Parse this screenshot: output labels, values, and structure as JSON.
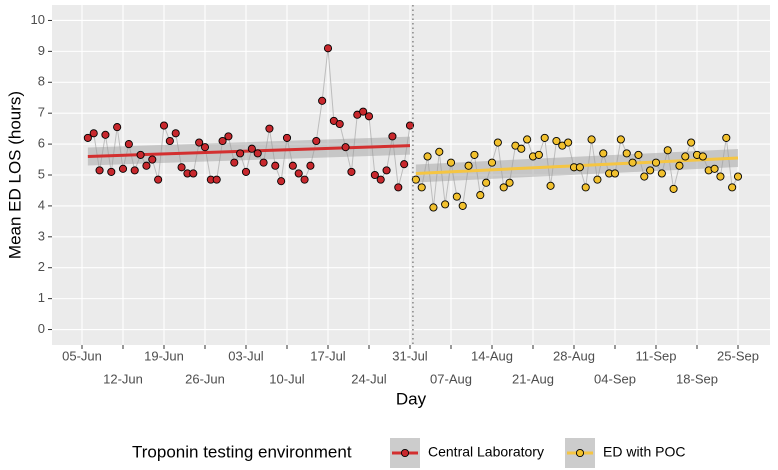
{
  "chart_data": {
    "type": "line",
    "x_label": "Day",
    "y_label": "Mean ED LOS (hours)",
    "legend_title": "Troponin testing environment",
    "legend_position": "bottom",
    "grid": true,
    "ylim": [
      -0.5,
      10.5
    ],
    "yticks": [
      0,
      1,
      2,
      3,
      4,
      5,
      6,
      7,
      8,
      9,
      10
    ],
    "categories": [
      "05-Jun",
      null,
      null,
      null,
      null,
      null,
      null,
      "12-Jun",
      null,
      null,
      null,
      null,
      null,
      null,
      "19-Jun",
      null,
      null,
      null,
      null,
      null,
      null,
      "26-Jun",
      null,
      null,
      null,
      null,
      null,
      null,
      "03-Jul",
      null,
      null,
      null,
      null,
      null,
      null,
      "10-Jul",
      null,
      null,
      null,
      null,
      null,
      null,
      "17-Jul",
      null,
      null,
      null,
      null,
      null,
      null,
      "24-Jul",
      null,
      null,
      null,
      null,
      null,
      null,
      "31-Jul",
      null,
      null,
      null,
      null,
      null,
      null,
      "07-Aug",
      null,
      null,
      null,
      null,
      null,
      null,
      "14-Aug",
      null,
      null,
      null,
      null,
      null,
      null,
      "21-Aug",
      null,
      null,
      null,
      null,
      null,
      null,
      "28-Aug",
      null,
      null,
      null,
      null,
      null,
      null,
      "04-Sep",
      null,
      null,
      null,
      null,
      null,
      null,
      "11-Sep",
      null,
      null,
      null,
      null,
      null,
      null,
      "18-Sep",
      null,
      null,
      null,
      null,
      null,
      null,
      "25-Sep"
    ],
    "series": [
      {
        "name": "Central Laboratory",
        "color": "#c8282d",
        "trend_color": "#d32f2f",
        "trend": [
          5.6,
          5.95
        ],
        "values": [
          null,
          6.2,
          6.35,
          5.15,
          6.3,
          5.1,
          6.55,
          5.2,
          6.0,
          5.15,
          5.65,
          5.3,
          5.5,
          4.85,
          6.6,
          6.1,
          6.35,
          5.25,
          5.05,
          5.05,
          6.05,
          5.9,
          4.85,
          4.85,
          6.1,
          6.25,
          5.4,
          5.7,
          5.1,
          5.85,
          5.7,
          5.4,
          6.5,
          5.3,
          4.8,
          6.2,
          5.3,
          5.05,
          4.85,
          5.3,
          6.1,
          7.4,
          9.1,
          6.75,
          6.65,
          5.9,
          5.1,
          6.95,
          7.05,
          6.9,
          5.0,
          4.85,
          5.15,
          6.25,
          4.6,
          5.35,
          6.6,
          null,
          null,
          null,
          null,
          null,
          null,
          null,
          null,
          null,
          null,
          null,
          null,
          null,
          null,
          null,
          null,
          null,
          null,
          null,
          null,
          null,
          null,
          null,
          null,
          null,
          null,
          null,
          null,
          null,
          null,
          null,
          null,
          null,
          null,
          null,
          null,
          null,
          null,
          null,
          null,
          null,
          null,
          null,
          null,
          null,
          null,
          null,
          null,
          null,
          null,
          null,
          null,
          null,
          null,
          null,
          null
        ]
      },
      {
        "name": "ED with POC",
        "color": "#f2c12e",
        "trend_color": "#f5c542",
        "trend": [
          5.05,
          5.55
        ],
        "values": [
          null,
          null,
          null,
          null,
          null,
          null,
          null,
          null,
          null,
          null,
          null,
          null,
          null,
          null,
          null,
          null,
          null,
          null,
          null,
          null,
          null,
          null,
          null,
          null,
          null,
          null,
          null,
          null,
          null,
          null,
          null,
          null,
          null,
          null,
          null,
          null,
          null,
          null,
          null,
          null,
          null,
          null,
          null,
          null,
          null,
          null,
          null,
          null,
          null,
          null,
          null,
          null,
          null,
          null,
          null,
          null,
          null,
          4.85,
          4.6,
          5.6,
          3.95,
          5.75,
          4.05,
          5.4,
          4.3,
          4.0,
          5.3,
          5.65,
          4.35,
          4.75,
          5.4,
          6.05,
          4.6,
          4.75,
          5.95,
          5.85,
          6.15,
          5.6,
          5.65,
          6.2,
          4.65,
          6.1,
          5.95,
          6.05,
          5.25,
          5.25,
          4.6,
          6.15,
          4.85,
          5.7,
          5.05,
          5.05,
          6.15,
          5.7,
          5.4,
          5.65,
          4.95,
          5.15,
          5.4,
          5.05,
          5.8,
          4.55,
          5.3,
          5.6,
          6.05,
          5.65,
          5.6,
          5.15,
          5.2,
          4.95,
          6.2,
          4.6,
          4.95
        ]
      }
    ]
  }
}
